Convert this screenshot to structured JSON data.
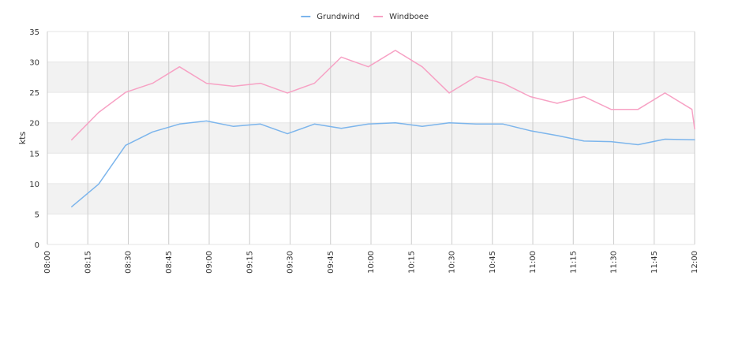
{
  "chart_data": {
    "type": "line",
    "title": "",
    "xlabel": "",
    "ylabel": "kts",
    "ylim": [
      0,
      35
    ],
    "yticks": [
      0,
      5,
      10,
      15,
      20,
      25,
      30,
      35
    ],
    "xlim": [
      "08:00",
      "12:00"
    ],
    "xticks": [
      "08:00",
      "08:15",
      "08:30",
      "08:45",
      "09:00",
      "09:15",
      "09:30",
      "09:45",
      "10:00",
      "10:15",
      "10:30",
      "10:45",
      "11:00",
      "11:15",
      "11:30",
      "11:45",
      "12:00"
    ],
    "grid": true,
    "legend_position": "top-center",
    "series": [
      {
        "name": "Grundwind",
        "color": "#7cb5ec",
        "points": [
          [
            "08:09",
            6.2
          ],
          [
            "08:19",
            9.9
          ],
          [
            "08:29",
            16.3
          ],
          [
            "08:39",
            18.5
          ],
          [
            "08:49",
            19.8
          ],
          [
            "08:59",
            20.3
          ],
          [
            "09:09",
            19.4
          ],
          [
            "09:19",
            19.8
          ],
          [
            "09:29",
            18.2
          ],
          [
            "09:39",
            19.8
          ],
          [
            "09:49",
            19.1
          ],
          [
            "09:59",
            19.8
          ],
          [
            "10:09",
            20.0
          ],
          [
            "10:19",
            19.4
          ],
          [
            "10:29",
            20.0
          ],
          [
            "10:39",
            19.8
          ],
          [
            "10:49",
            19.8
          ],
          [
            "10:59",
            18.7
          ],
          [
            "11:09",
            17.9
          ],
          [
            "11:19",
            17.0
          ],
          [
            "11:29",
            16.9
          ],
          [
            "11:39",
            16.4
          ],
          [
            "11:49",
            17.3
          ],
          [
            "11:59",
            17.2
          ],
          [
            "12:00",
            17.2
          ]
        ]
      },
      {
        "name": "Windboee",
        "color": "#f7a1c4",
        "points": [
          [
            "08:09",
            17.2
          ],
          [
            "08:19",
            21.7
          ],
          [
            "08:29",
            25.0
          ],
          [
            "08:39",
            26.5
          ],
          [
            "08:49",
            29.2
          ],
          [
            "08:59",
            26.5
          ],
          [
            "09:09",
            26.0
          ],
          [
            "09:19",
            26.5
          ],
          [
            "09:29",
            24.9
          ],
          [
            "09:39",
            26.5
          ],
          [
            "09:49",
            30.8
          ],
          [
            "09:59",
            29.2
          ],
          [
            "10:09",
            31.9
          ],
          [
            "10:19",
            29.2
          ],
          [
            "10:29",
            24.9
          ],
          [
            "10:39",
            27.6
          ],
          [
            "10:49",
            26.5
          ],
          [
            "10:59",
            24.3
          ],
          [
            "11:09",
            23.2
          ],
          [
            "11:19",
            24.3
          ],
          [
            "11:29",
            22.2
          ],
          [
            "11:39",
            22.2
          ],
          [
            "11:49",
            24.9
          ],
          [
            "11:59",
            22.2
          ],
          [
            "12:00",
            19.0
          ]
        ]
      }
    ]
  }
}
